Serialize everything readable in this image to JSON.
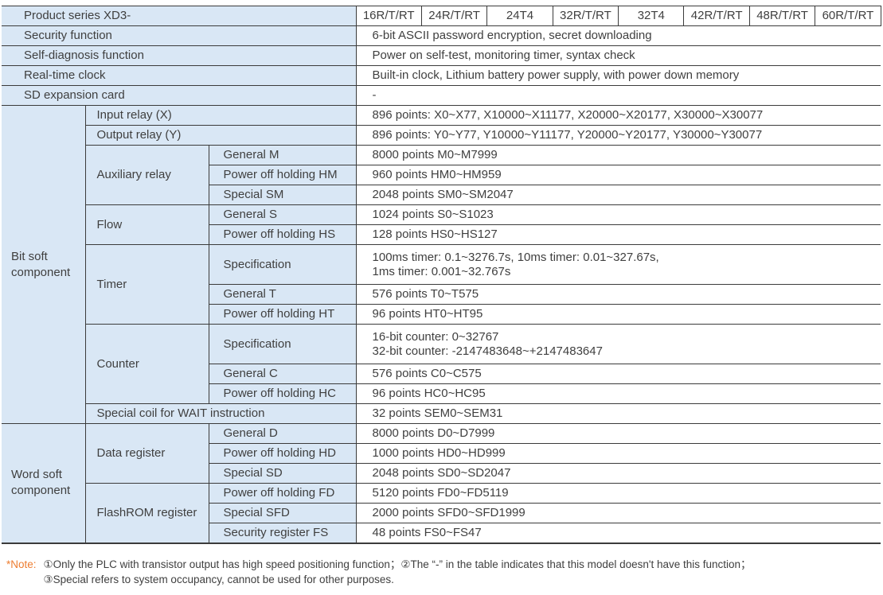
{
  "table": {
    "product_series_label": "Product series XD3-",
    "models": [
      "16R/T/RT",
      "24R/T/RT",
      "24T4",
      "32R/T/RT",
      "32T4",
      "42R/T/RT",
      "48R/T/RT",
      "60R/T/RT"
    ],
    "security": {
      "label": "Security function",
      "value": "6-bit ASCII password encryption, secret downloading"
    },
    "self_diagnosis": {
      "label": "Self-diagnosis function",
      "value": "Power on self-test, monitoring timer, syntax check"
    },
    "realtime_clock": {
      "label": "Real-time clock",
      "value": "Built-in clock, Lithium battery power supply, with power down memory"
    },
    "sd_card": {
      "label": "SD expansion card",
      "value": "-"
    },
    "bit": {
      "category": "Bit soft component",
      "input_relay": {
        "label": "Input relay (X)",
        "value": "896 points: X0~X77, X10000~X11177, X20000~X20177, X30000~X30077"
      },
      "output_relay": {
        "label": "Output relay (Y)",
        "value": "896 points: Y0~Y77, Y10000~Y11177, Y20000~Y20177, Y30000~Y30077"
      },
      "auxiliary": {
        "label": "Auxiliary relay",
        "general": {
          "label": "General M",
          "value": "8000 points M0~M7999"
        },
        "holding": {
          "label": "Power off holding HM",
          "value": "960 points  HM0~HM959"
        },
        "special": {
          "label": "Special SM",
          "value": "2048 points SM0~SM2047"
        }
      },
      "flow": {
        "label": "Flow",
        "general": {
          "label": "General S",
          "value": "1024 points S0~S1023"
        },
        "holding": {
          "label": "Power off holding HS",
          "value": "128 points HS0~HS127"
        }
      },
      "timer": {
        "label": "Timer",
        "spec": {
          "label": "Specification",
          "value": "100ms timer: 0.1~3276.7s, 10ms timer: 0.01~327.67s,\n1ms timer: 0.001~32.767s"
        },
        "general": {
          "label": "General T",
          "value": "576 points T0~T575"
        },
        "holding": {
          "label": "Power off holding HT",
          "value": "96 points HT0~HT95"
        }
      },
      "counter": {
        "label": "Counter",
        "spec": {
          "label": "Specification",
          "value": "16-bit counter: 0~32767\n32-bit counter: -2147483648~+2147483647"
        },
        "general": {
          "label": "General C",
          "value": "576 points C0~C575"
        },
        "holding": {
          "label": "Power off holding HC",
          "value": "96 points HC0~HC95"
        }
      },
      "wait_coil": {
        "label": "Special coil for WAIT instruction",
        "value": "32 points SEM0~SEM31"
      }
    },
    "word": {
      "category": "Word soft component",
      "data_register": {
        "label": "Data register",
        "general": {
          "label": "General D",
          "value": "8000 points D0~D7999"
        },
        "holding": {
          "label": "Power off holding HD",
          "value": "1000 points HD0~HD999"
        },
        "special": {
          "label": "Special SD",
          "value": "2048 points SD0~SD2047"
        }
      },
      "flashrom": {
        "label": "FlashROM register",
        "holding": {
          "label": "Power off holding FD",
          "value": "5120 points FD0~FD5119"
        },
        "special": {
          "label": "Special SFD",
          "value": "2000 points SFD0~SFD1999"
        },
        "security": {
          "label": "Security register FS",
          "value": "48 points FS0~FS47"
        }
      }
    }
  },
  "note": {
    "prefix": "*Note:",
    "line1": "①Only the PLC with transistor output has high speed positioning function；②The “-” in the table indicates that this model doesn't have this function；",
    "line2": "③Special refers to system occupancy, cannot be used for other purposes."
  },
  "colors": {
    "label_bg": "#d9e7f5",
    "border": "#3b3b3b",
    "text": "#3f3f3f",
    "note_accent": "#ed7d31"
  }
}
